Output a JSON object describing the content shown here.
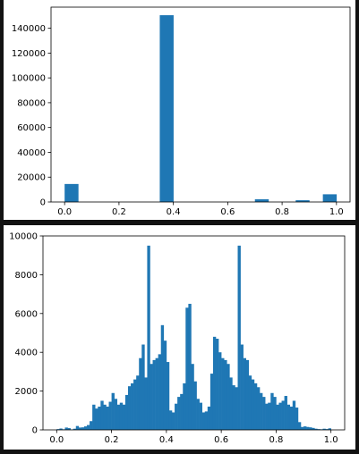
{
  "chart_data": [
    {
      "type": "bar",
      "subtype": "histogram",
      "color": "#1f77b4",
      "xlim": [
        -0.05,
        1.05
      ],
      "ylim": [
        0,
        157000
      ],
      "xticks": [
        0.0,
        0.2,
        0.4,
        0.6,
        0.8,
        1.0
      ],
      "xtick_labels": [
        "0.0",
        "0.2",
        "0.4",
        "0.6",
        "0.8",
        "1.0"
      ],
      "yticks": [
        0,
        20000,
        40000,
        60000,
        80000,
        100000,
        120000,
        140000
      ],
      "ytick_labels": [
        "0",
        "20000",
        "40000",
        "60000",
        "80000",
        "100000",
        "120000",
        "140000"
      ],
      "bin_start": 0.0,
      "bin_width": 0.05,
      "values": [
        14500,
        0,
        0,
        0,
        0,
        0,
        0,
        150500,
        0,
        0,
        0,
        0,
        0,
        0,
        2200,
        0,
        0,
        1400,
        0,
        6200
      ]
    },
    {
      "type": "bar",
      "subtype": "histogram",
      "color": "#1f77b4",
      "xlim": [
        -0.05,
        1.05
      ],
      "ylim": [
        0,
        10000
      ],
      "xticks": [
        0.0,
        0.2,
        0.4,
        0.6,
        0.8,
        1.0
      ],
      "xtick_labels": [
        "0.0",
        "0.2",
        "0.4",
        "0.6",
        "0.8",
        "1.0"
      ],
      "yticks": [
        0,
        2000,
        4000,
        6000,
        8000,
        10000
      ],
      "ytick_labels": [
        "0",
        "2000",
        "4000",
        "6000",
        "8000",
        "10000"
      ],
      "bin_start": 0.0,
      "bin_width": 0.01,
      "values": [
        40,
        70,
        30,
        120,
        90,
        20,
        60,
        200,
        120,
        130,
        180,
        250,
        450,
        1300,
        1100,
        1200,
        1500,
        1300,
        1200,
        1450,
        1900,
        1600,
        1300,
        1400,
        1300,
        1800,
        2250,
        2400,
        2600,
        2800,
        3700,
        4400,
        2700,
        9500,
        3400,
        3600,
        3700,
        3900,
        5400,
        4600,
        3500,
        1000,
        900,
        1350,
        1700,
        1850,
        2400,
        6300,
        6500,
        3400,
        2500,
        1600,
        1400,
        900,
        950,
        1200,
        2900,
        4800,
        4700,
        4000,
        3700,
        3600,
        3400,
        2700,
        2300,
        2200,
        9500,
        4400,
        3700,
        3600,
        2800,
        2600,
        2400,
        2200,
        1900,
        1700,
        1350,
        1400,
        1900,
        1700,
        1300,
        1400,
        1500,
        1750,
        1300,
        1200,
        1500,
        1150,
        400,
        150,
        180,
        150,
        130,
        100,
        60,
        40,
        30,
        60,
        40,
        80
      ]
    }
  ]
}
